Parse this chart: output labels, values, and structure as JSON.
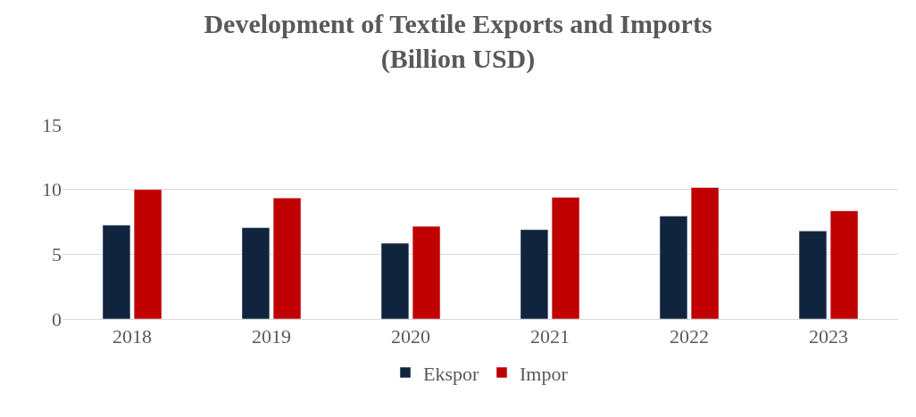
{
  "chart_data": {
    "type": "bar",
    "title": "Development of Textile Exports and Imports\n(Billion USD)",
    "categories": [
      "2018",
      "2019",
      "2020",
      "2021",
      "2022",
      "2023"
    ],
    "series": [
      {
        "name": "Ekspor",
        "color": "#10243e",
        "values": [
          7.25,
          7.05,
          5.85,
          6.9,
          7.95,
          6.8
        ]
      },
      {
        "name": "Impor",
        "color": "#c00000",
        "values": [
          10.0,
          9.35,
          7.15,
          9.4,
          10.15,
          8.35
        ]
      }
    ],
    "ylim": [
      0,
      15
    ],
    "yticks": [
      0,
      5,
      10,
      15
    ],
    "grid": "y",
    "legend": "bottom"
  }
}
